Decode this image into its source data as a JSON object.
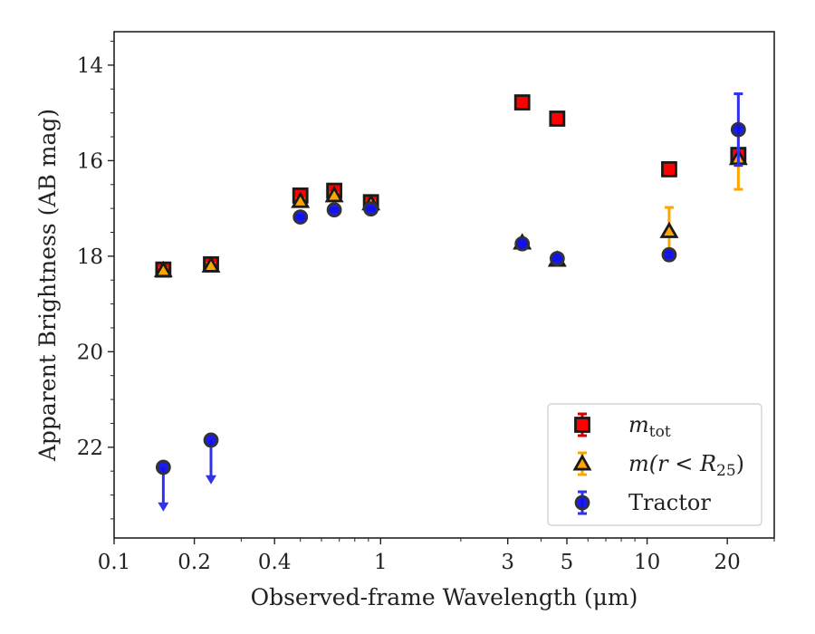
{
  "chart_data": {
    "type": "scatter",
    "xscale": "log",
    "yaxis_inverted": true,
    "xlim": [
      0.1,
      30
    ],
    "ylim": [
      13.3,
      23.9
    ],
    "xlabel": "Observed-frame Wavelength (μm)",
    "ylabel": "Apparent Brightness (AB mag)",
    "title": "",
    "grid": false,
    "legend_position": "lower-right",
    "x_ticks": [
      0.1,
      0.2,
      0.4,
      1,
      3,
      5,
      10,
      20
    ],
    "x_tick_labels": [
      "0.1",
      "0.2",
      "0.4",
      "1",
      "3",
      "5",
      "10",
      "20"
    ],
    "y_ticks": [
      14,
      16,
      18,
      20,
      22
    ],
    "y_tick_labels": [
      "14",
      "16",
      "18",
      "20",
      "22"
    ],
    "series": [
      {
        "name": "m_tot",
        "label_main": "m",
        "label_sub": "tot",
        "marker": "square",
        "color": "#ff0000",
        "edge_color": "#1a1a1a",
        "error_color": "#dd0000",
        "points": [
          {
            "x": 0.153,
            "y": 18.28,
            "err": 0.06
          },
          {
            "x": 0.231,
            "y": 18.17,
            "err": 0.06
          },
          {
            "x": 0.5,
            "y": 16.73,
            "err": 0.04
          },
          {
            "x": 0.67,
            "y": 16.63,
            "err": 0.04
          },
          {
            "x": 0.92,
            "y": 16.87,
            "err": 0.04
          },
          {
            "x": 3.4,
            "y": 14.78,
            "err": 0.03
          },
          {
            "x": 4.6,
            "y": 15.12,
            "err": 0.03
          },
          {
            "x": 12.1,
            "y": 16.18,
            "err": 0.05
          },
          {
            "x": 22.0,
            "y": 15.88,
            "err": 0.08
          }
        ]
      },
      {
        "name": "m(r < R25)",
        "label_main": "m(r < R",
        "label_sub": "25",
        "label_end": ")",
        "marker": "triangle",
        "color": "#ffa500",
        "edge_color": "#1a1a1a",
        "error_color": "#ffa500",
        "points": [
          {
            "x": 0.153,
            "y": 18.3,
            "err": 0.05
          },
          {
            "x": 0.231,
            "y": 18.2,
            "err": 0.05
          },
          {
            "x": 0.5,
            "y": 16.85,
            "err": 0.05
          },
          {
            "x": 0.67,
            "y": 16.73,
            "err": 0.05
          },
          {
            "x": 0.92,
            "y": 16.9,
            "err": 0.05
          },
          {
            "x": 3.4,
            "y": 17.72,
            "err": 0.05
          },
          {
            "x": 4.6,
            "y": 18.08,
            "err": 0.05
          },
          {
            "x": 12.1,
            "y": 17.48,
            "err": 0.5
          },
          {
            "x": 22.0,
            "y": 15.95,
            "err": 0.65
          }
        ]
      },
      {
        "name": "Tractor",
        "label_main": "Tractor",
        "marker": "circle",
        "color": "#1010ee",
        "edge_color": "#333333",
        "error_color": "#3030ee",
        "points": [
          {
            "x": 0.153,
            "y": 22.42,
            "upper_limit": true
          },
          {
            "x": 0.231,
            "y": 21.85,
            "upper_limit": true
          },
          {
            "x": 0.5,
            "y": 17.18,
            "err": 0.03
          },
          {
            "x": 0.67,
            "y": 17.03,
            "err": 0.03
          },
          {
            "x": 0.92,
            "y": 17.01,
            "err": 0.03
          },
          {
            "x": 3.4,
            "y": 17.74,
            "err": 0.03
          },
          {
            "x": 4.6,
            "y": 18.05,
            "err": 0.03
          },
          {
            "x": 12.1,
            "y": 17.97,
            "err": 0.05
          },
          {
            "x": 22.0,
            "y": 15.35,
            "err": 0.75
          }
        ]
      }
    ]
  }
}
